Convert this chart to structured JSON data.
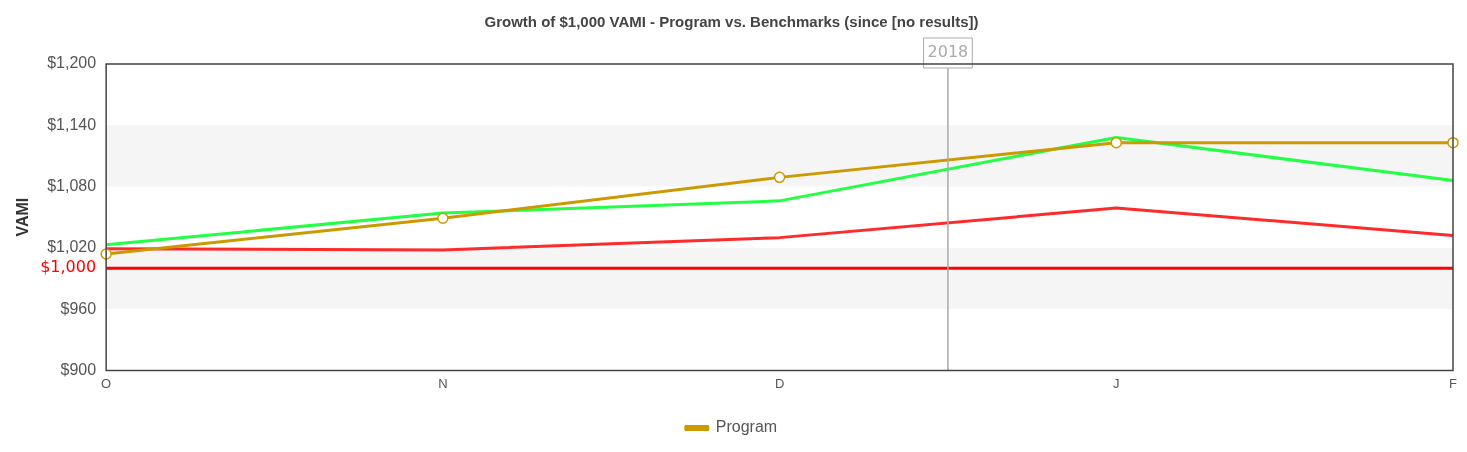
{
  "chart_data": {
    "type": "line",
    "title": "Growth of $1,000 VAMI - Program vs. Benchmarks (since [no results])",
    "ylabel": "VAMI",
    "categories": [
      "O",
      "N",
      "D",
      "J",
      "F"
    ],
    "series": [
      {
        "name": "Program",
        "color": "#cc9900",
        "marker": "circle",
        "values": [
          1014,
          1049,
          1089,
          1123,
          1123
        ]
      },
      {
        "color": "#ff2a2a",
        "marker": "none",
        "values": [
          1019,
          1018,
          1030,
          1059,
          1032
        ]
      },
      {
        "color": "#22ff44",
        "marker": "none",
        "values": [
          1023,
          1054,
          1066,
          1128,
          1086
        ]
      }
    ],
    "ylim": [
      900,
      1200
    ],
    "yticks": [
      {
        "value": 900,
        "label": "$900"
      },
      {
        "value": 960,
        "label": "$960"
      },
      {
        "value": 1020,
        "label": "$1,020"
      },
      {
        "value": 1080,
        "label": "$1,080"
      },
      {
        "value": 1140,
        "label": "$1,140"
      },
      {
        "value": 1200,
        "label": "$1,200"
      }
    ],
    "bands": [
      {
        "axis": "y",
        "from": 960,
        "to": 1020,
        "color": "#f5f5f5"
      },
      {
        "axis": "y",
        "from": 1080,
        "to": 1140,
        "color": "#f5f5f5"
      }
    ],
    "ref_lines": [
      {
        "axis": "y",
        "value": 1000,
        "label": "$1,000",
        "color": "#ff0000"
      }
    ],
    "annotations": [
      "2018"
    ],
    "grid": false,
    "legend": "bottom",
    "line_style": "solid"
  }
}
